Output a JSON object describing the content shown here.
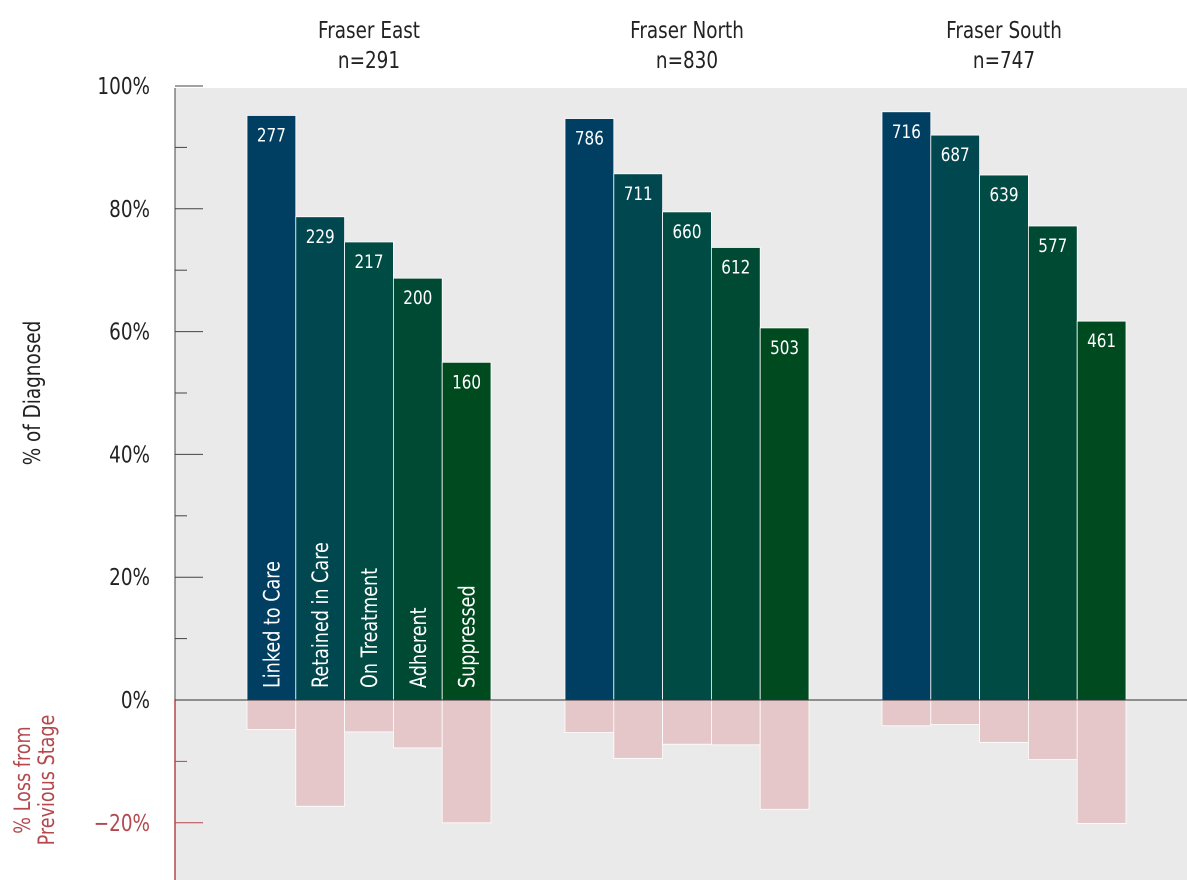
{
  "chart_data": {
    "type": "bar",
    "ylabel": "% of Diagnosed",
    "ylabel_loss": "% Loss from\nPrevious Stage",
    "ylim": [
      -24,
      100
    ],
    "yticks": [
      {
        "value": 100,
        "label": "100%"
      },
      {
        "value": 80,
        "label": "80%"
      },
      {
        "value": 60,
        "label": "60%"
      },
      {
        "value": 40,
        "label": "40%"
      },
      {
        "value": 20,
        "label": "20%"
      },
      {
        "value": 0,
        "label": "0%"
      },
      {
        "value": -20,
        "label": "−20%"
      }
    ],
    "minor_ticks": [
      90,
      70,
      50,
      30,
      10,
      -10
    ],
    "categories": [
      "Linked to Care",
      "Retained in Care",
      "On Treatment",
      "Adherent",
      "Suppressed"
    ],
    "colors": [
      "#003e62",
      "#00474f",
      "#004b43",
      "#004a34",
      "#004a1f"
    ],
    "loss_color": "#e6c7c9",
    "loss_axis_color": "#b3484d",
    "background": "#eaeaea",
    "groups": [
      {
        "name": "Fraser East",
        "n_label": "n=291",
        "counts": [
          277,
          229,
          217,
          200,
          160
        ],
        "values": [
          95.2,
          78.7,
          74.6,
          68.7,
          55.0
        ],
        "loss": [
          -4.8,
          -17.3,
          -5.2,
          -7.8,
          -20.0
        ]
      },
      {
        "name": "Fraser North",
        "n_label": "n=830",
        "counts": [
          786,
          711,
          660,
          612,
          503
        ],
        "values": [
          94.7,
          85.7,
          79.5,
          73.7,
          60.6
        ],
        "loss": [
          -5.3,
          -9.5,
          -7.2,
          -7.3,
          -17.8
        ]
      },
      {
        "name": "Fraser South",
        "n_label": "n=747",
        "counts": [
          716,
          687,
          639,
          577,
          461
        ],
        "values": [
          95.8,
          92.0,
          85.5,
          77.2,
          61.7
        ],
        "loss": [
          -4.2,
          -4.0,
          -6.9,
          -9.7,
          -20.1
        ]
      }
    ]
  }
}
